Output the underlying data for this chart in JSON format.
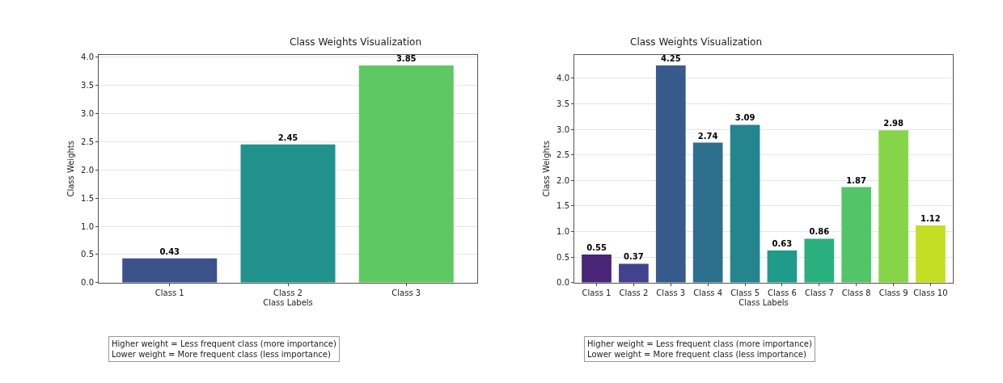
{
  "chart_data": [
    {
      "type": "bar",
      "title": "Class Weights Visualization",
      "xlabel": "Class Labels",
      "ylabel": "Class Weights",
      "categories": [
        "Class 1",
        "Class 2",
        "Class 3"
      ],
      "values": [
        0.43,
        2.45,
        3.85
      ],
      "colors": [
        "#3b528b",
        "#21918c",
        "#5ec962"
      ],
      "ylim": [
        0,
        4.04
      ],
      "yticks": [
        {
          "value": 0,
          "label": "0.0"
        },
        0.5,
        {
          "value": 1,
          "label": "1.0"
        },
        1.5,
        {
          "value": 2,
          "label": "2.0"
        },
        2.5,
        {
          "value": 3,
          "label": "3.0"
        },
        3.5,
        {
          "value": 4,
          "label": "4.0"
        }
      ],
      "grid": "y",
      "data_labels": true,
      "annotations": [
        "Higher weight = Less frequent class (more importance)",
        "Lower weight = More frequent class (less importance)"
      ]
    },
    {
      "type": "bar",
      "title": "Class Weights Visualization",
      "xlabel": "Class Labels",
      "ylabel": "Class Weights",
      "categories": [
        "Class 1",
        "Class 2",
        "Class 3",
        "Class 4",
        "Class 5",
        "Class 6",
        "Class 7",
        "Class 8",
        "Class 9",
        "Class 10"
      ],
      "values": [
        0.55,
        0.37,
        4.25,
        2.74,
        3.09,
        0.63,
        0.86,
        1.87,
        2.98,
        1.12
      ],
      "colors": [
        "#482576",
        "#43428e",
        "#375a8c",
        "#2d708e",
        "#25858e",
        "#1e9b8a",
        "#2ab07f",
        "#52c569",
        "#86d549",
        "#c2df23"
      ],
      "ylim": [
        0,
        4.46
      ],
      "yticks": [
        {
          "value": 0,
          "label": "0.0"
        },
        0.5,
        {
          "value": 1,
          "label": "1.0"
        },
        1.5,
        {
          "value": 2,
          "label": "2.0"
        },
        2.5,
        {
          "value": 3,
          "label": "3.0"
        },
        3.5,
        {
          "value": 4,
          "label": "4.0"
        }
      ],
      "grid": "y",
      "data_labels": true,
      "annotations": [
        "Higher weight = Less frequent class (more importance)",
        "Lower weight = More frequent class (less importance)"
      ]
    }
  ]
}
